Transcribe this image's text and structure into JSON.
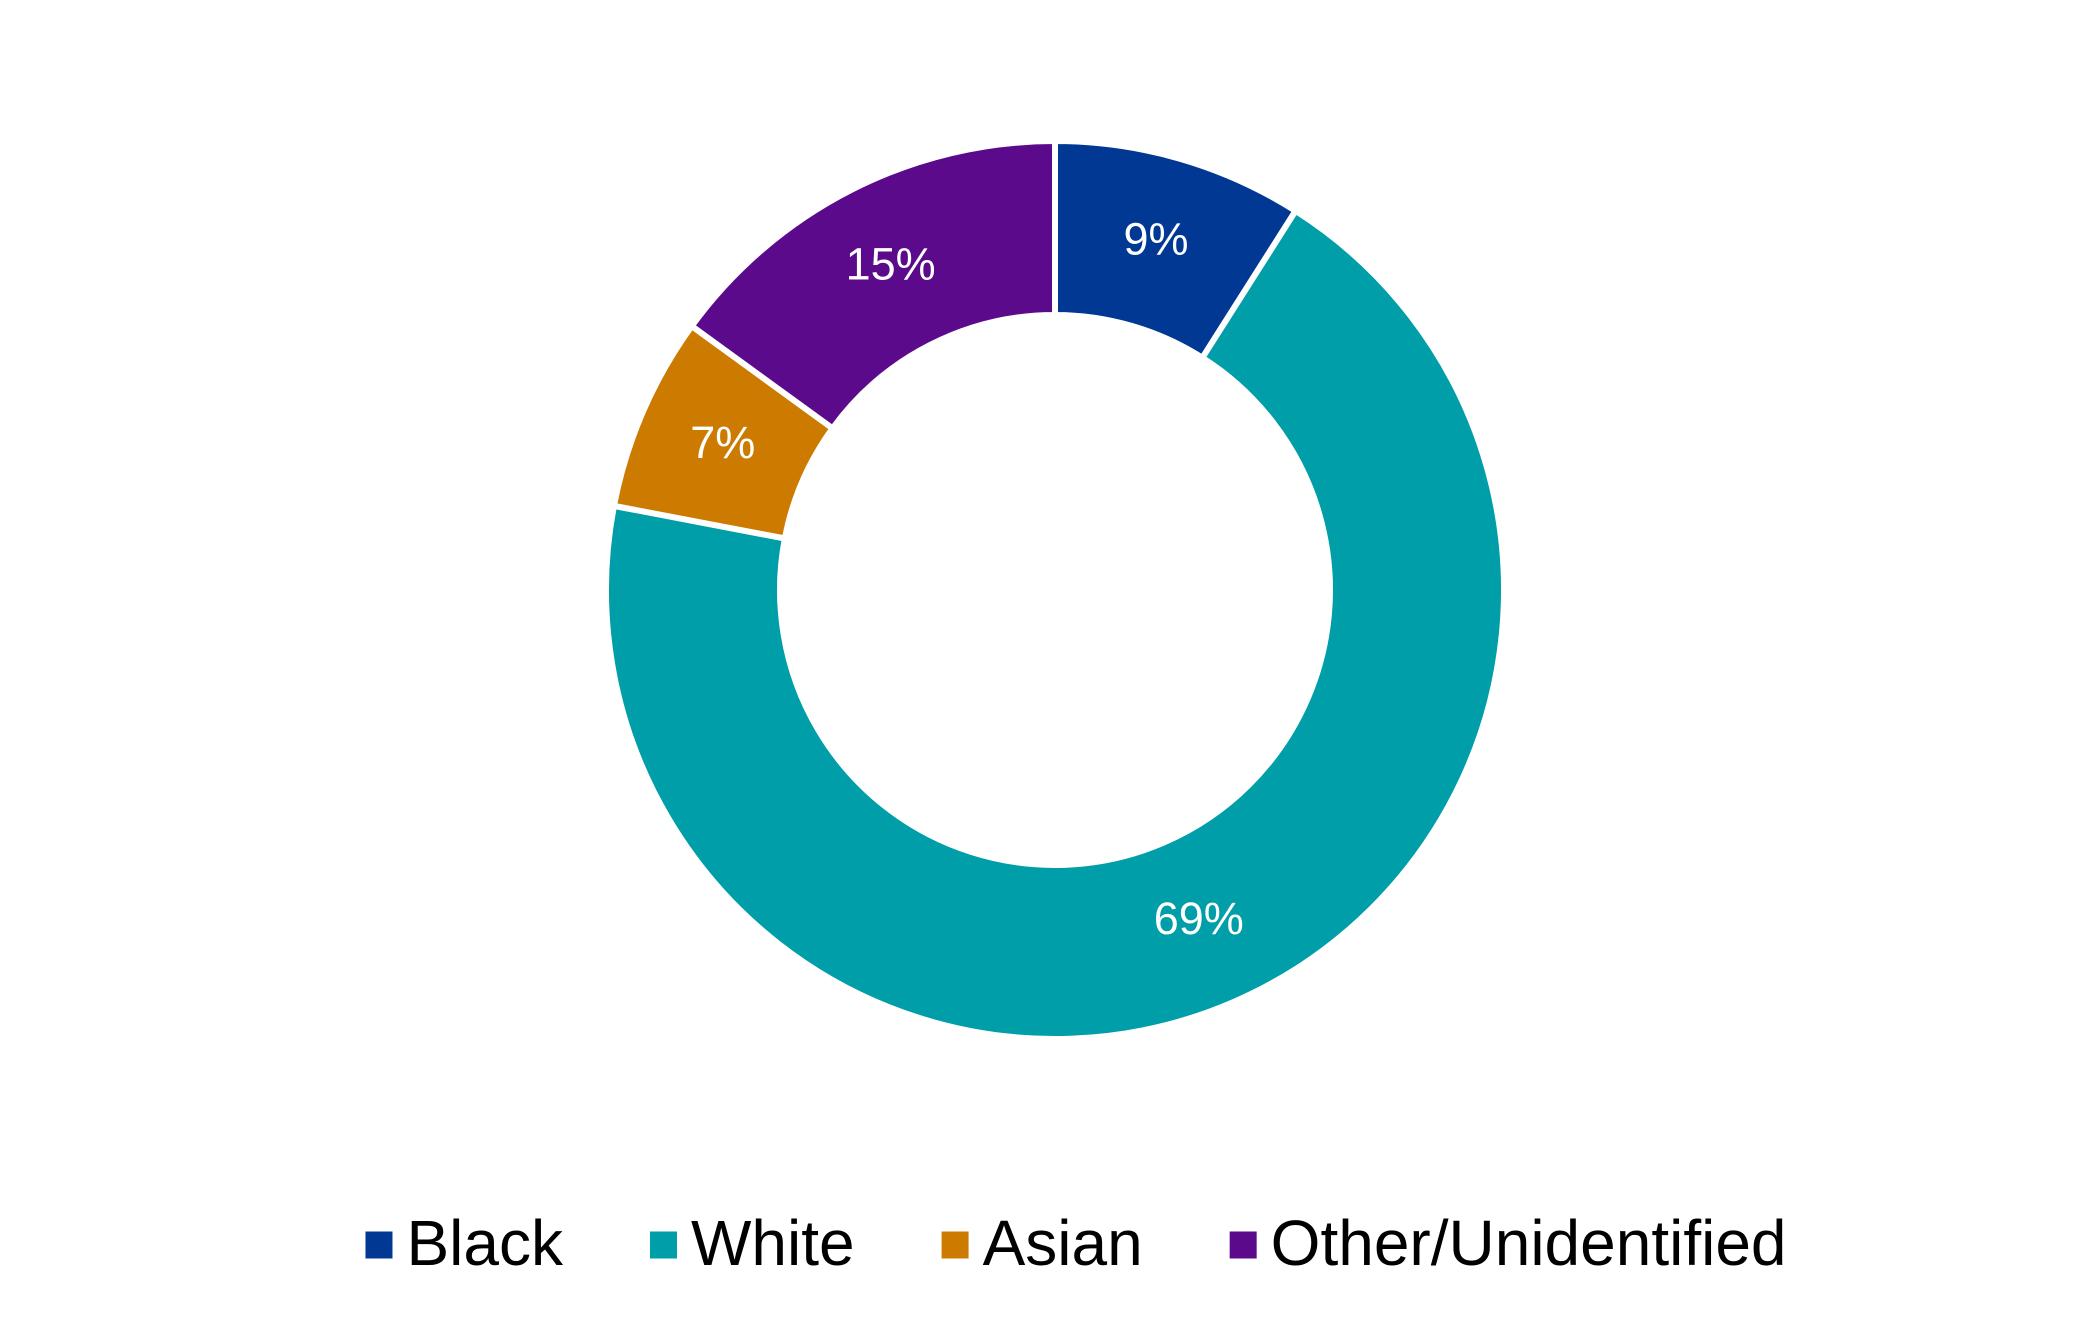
{
  "chart_data": {
    "type": "donut",
    "categories": [
      "Black",
      "White",
      "Asian",
      "Other/Unidentified"
    ],
    "values": [
      9,
      69,
      7,
      15
    ],
    "value_labels": [
      "9%",
      "69%",
      "7%",
      "15%"
    ],
    "colors": [
      "#003893",
      "#009ea8",
      "#cc7a00",
      "#5a0a8a"
    ],
    "legend": "bottom"
  }
}
